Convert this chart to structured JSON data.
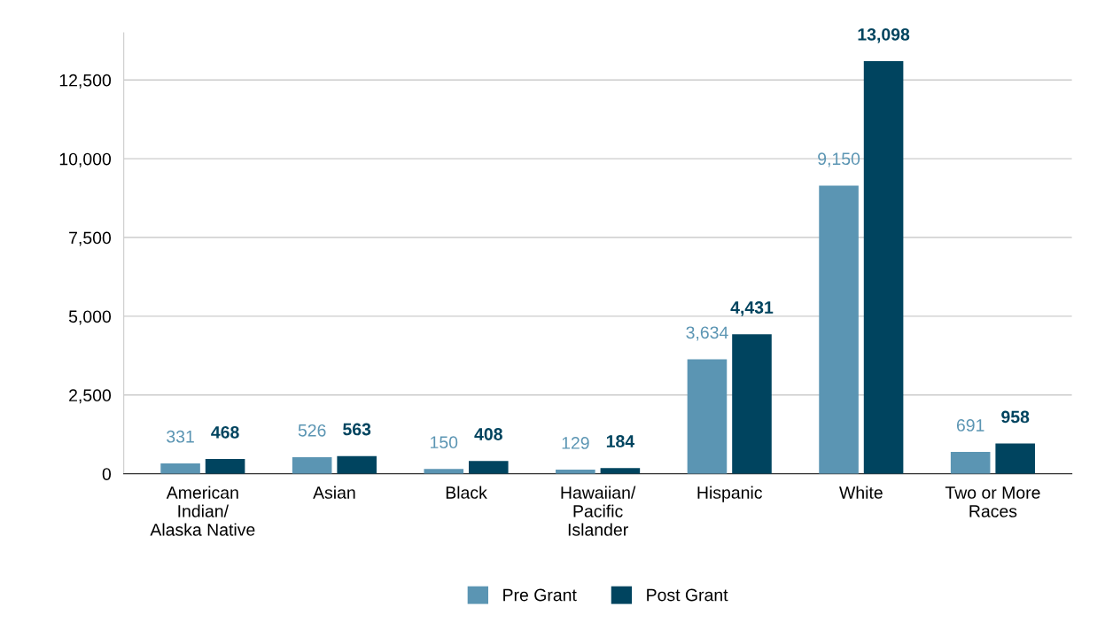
{
  "chart_data": {
    "type": "bar",
    "categories": [
      "American\nIndian/\nAlaska Native",
      "Asian",
      "Black",
      "Hawaiian/\nPacific\nIslander",
      "Hispanic",
      "White",
      "Two or More\nRaces"
    ],
    "series": [
      {
        "name": "Pre Grant",
        "color": "#5b95b3",
        "values": [
          331,
          526,
          150,
          129,
          3634,
          9150,
          691
        ],
        "value_labels": [
          "331",
          "526",
          "150",
          "129",
          "3,634",
          "9,150",
          "691"
        ]
      },
      {
        "name": "Post Grant",
        "color": "#00445f",
        "values": [
          468,
          563,
          408,
          184,
          4431,
          13098,
          958
        ],
        "value_labels": [
          "468",
          "563",
          "408",
          "184",
          "4,431",
          "13,098",
          "958"
        ]
      }
    ],
    "yticks": [
      {
        "value": 0,
        "label": "0"
      },
      {
        "value": 2500,
        "label": "2,500"
      },
      {
        "value": 5000,
        "label": "5,000"
      },
      {
        "value": 7500,
        "label": "7,500"
      },
      {
        "value": 10000,
        "label": "10,000"
      },
      {
        "value": 12500,
        "label": "12,500"
      }
    ],
    "ylim": [
      0,
      14000
    ],
    "grid": "y",
    "legend": "bottom"
  }
}
